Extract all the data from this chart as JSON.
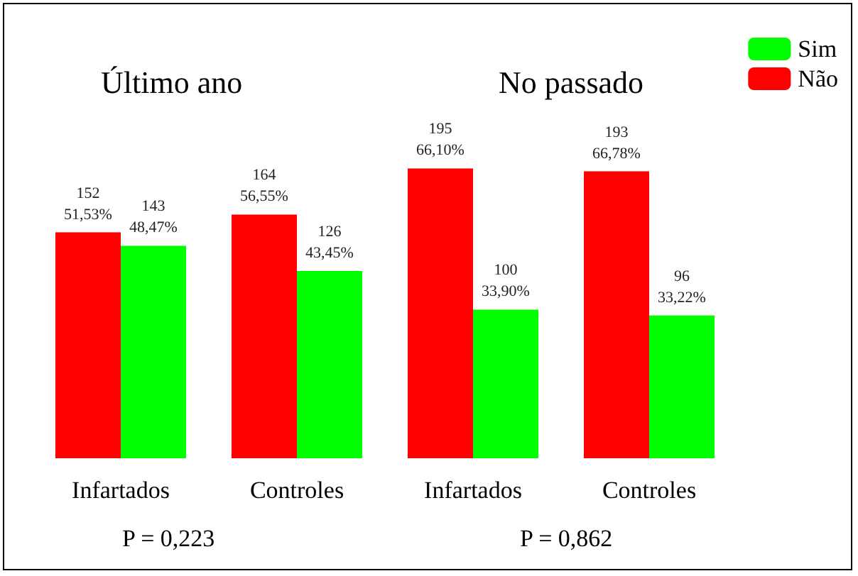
{
  "chart_data": {
    "type": "bar",
    "categories": [
      "Infartados",
      "Controles",
      "Infartados",
      "Controles"
    ],
    "series": [
      {
        "name": "Não",
        "color": "#ff0000",
        "values": [
          152,
          164,
          195,
          193
        ],
        "value_labels": [
          "152\n51,53%",
          "164\n56,55%",
          "195\n66,10%",
          "193\n66,78%"
        ]
      },
      {
        "name": "Sim",
        "color": "#00ff00",
        "values": [
          143,
          126,
          100,
          96
        ],
        "value_labels": [
          "143\n48,47%",
          "126\n43,45%",
          "100\n33,90%",
          "96\n33,22%"
        ]
      }
    ],
    "annotations": [
      "Último ano",
      "No passado",
      "P = 0,223",
      "P = 0,862"
    ],
    "legend": "top right"
  }
}
